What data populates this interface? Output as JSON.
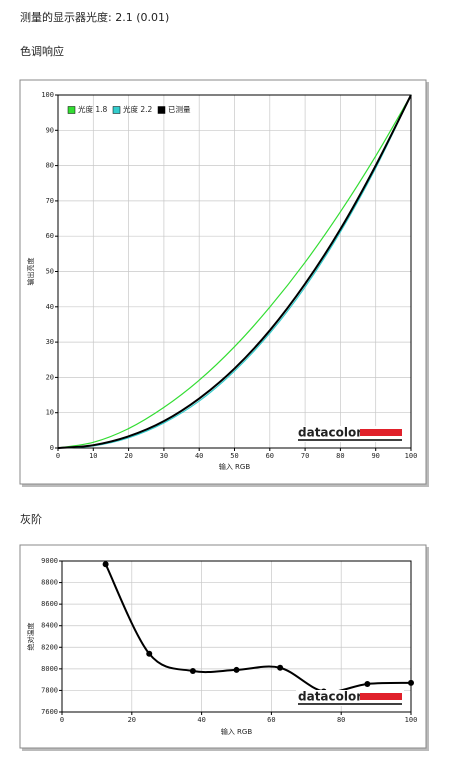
{
  "header": {
    "luminance": "测量的显示器光度: 2.1 (0.01)"
  },
  "sections": [
    "色调响应",
    "灰阶"
  ],
  "chart_data": [
    {
      "type": "line",
      "xlabel": "输入 RGB",
      "ylabel": "输出亮度",
      "logo": "datacolor",
      "x": [
        0,
        10,
        20,
        30,
        40,
        50,
        60,
        70,
        80,
        90,
        100
      ],
      "series": [
        {
          "name": "光度 1.8",
          "color": "#33dd33",
          "values": [
            0,
            1.6,
            5.5,
            11.5,
            19.2,
            28.7,
            39.9,
            52.6,
            66.9,
            82.7,
            100
          ]
        },
        {
          "name": "光度 2.2",
          "color": "#33cccc",
          "values": [
            0,
            0.6,
            2.9,
            7.1,
            13.3,
            21.8,
            32.5,
            45.6,
            61.2,
            79.3,
            100
          ]
        },
        {
          "name": "已测量",
          "color": "#000000",
          "values": [
            0,
            0.8,
            3.3,
            7.6,
            14,
            22.5,
            33.3,
            46.5,
            62,
            80,
            100
          ]
        }
      ],
      "xlim": [
        0,
        100
      ],
      "xticks": [
        0,
        10,
        20,
        30,
        40,
        50,
        60,
        70,
        80,
        90,
        100
      ],
      "ylim": [
        0,
        100
      ],
      "yticks": [
        0,
        10,
        20,
        30,
        40,
        50,
        60,
        70,
        80,
        90,
        100
      ],
      "grid": true,
      "legend": "top-left"
    },
    {
      "type": "line",
      "xlabel": "输入 RGB",
      "ylabel": "绝对温度",
      "logo": "datacolor",
      "x": [
        12.5,
        25,
        37.5,
        50,
        62.5,
        75,
        87.5,
        100
      ],
      "series": [
        {
          "name": null,
          "color": "#000000",
          "values": [
            8970,
            8140,
            7980,
            7990,
            8010,
            7790,
            7860,
            7870
          ],
          "markers": true
        }
      ],
      "xlim": [
        0,
        100
      ],
      "xticks": [
        0,
        20,
        40,
        60,
        80,
        100
      ],
      "ylim": [
        7600,
        9000
      ],
      "yticks": [
        7600,
        7800,
        8000,
        8200,
        8400,
        8600,
        8800,
        9000
      ],
      "grid": true
    }
  ]
}
